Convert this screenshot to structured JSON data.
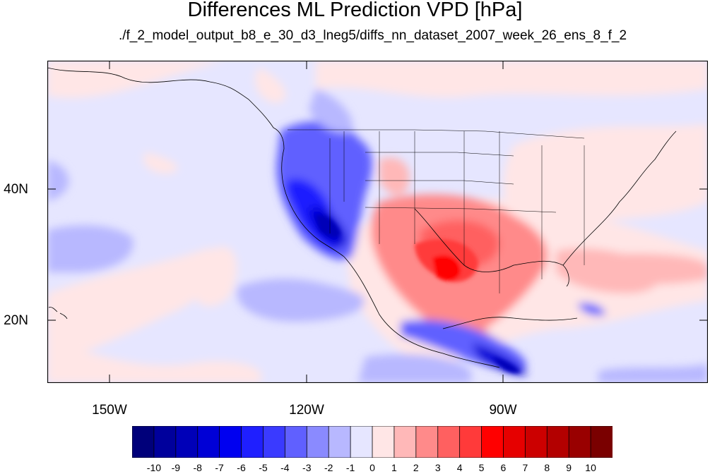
{
  "title": "Differences ML Prediction VPD [hPa]",
  "subtitle": "./f_2_model_output_b8_e_30_d3_lneg5/diffs_nn_dataset_2007_week_26_ens_8_f_2",
  "axes": {
    "lat_labels": [
      "40N",
      "20N"
    ],
    "lon_labels": [
      "150W",
      "120W",
      "90W"
    ]
  },
  "colorbar": {
    "tick_labels": [
      "-10",
      "-9",
      "-8",
      "-7",
      "-6",
      "-5",
      "-4",
      "-3",
      "-2",
      "-1",
      "0",
      "1",
      "2",
      "3",
      "4",
      "5",
      "6",
      "7",
      "8",
      "9",
      "10"
    ],
    "colors": [
      "#00007a",
      "#00009c",
      "#0000b8",
      "#0000d6",
      "#0000f0",
      "#1f1fff",
      "#3a3aff",
      "#6060ff",
      "#8a8aff",
      "#b8b8ff",
      "#e6e6ff",
      "#ffe6e6",
      "#ffb8b8",
      "#ff8a8a",
      "#ff6060",
      "#ff3a3a",
      "#ff0000",
      "#e60000",
      "#cc0000",
      "#b30000",
      "#990000",
      "#7a0000"
    ]
  }
}
